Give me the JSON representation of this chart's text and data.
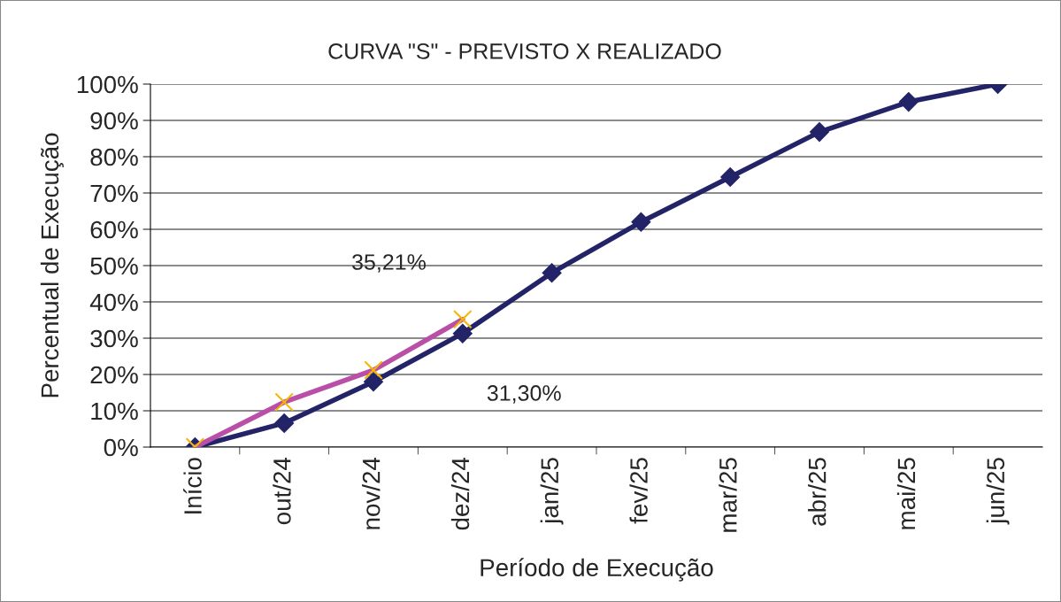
{
  "chart_data": {
    "type": "line",
    "title": "CURVA \"S\" - PREVISTO X REALIZADO",
    "xlabel": "Período de Execução",
    "ylabel": "Percentual de Execução",
    "categories": [
      "Início",
      "out/24",
      "nov/24",
      "dez/24",
      "jan/25",
      "fev/25",
      "mar/25",
      "abr/25",
      "mai/25",
      "jun/25"
    ],
    "series": [
      {
        "color": "#232368",
        "marker": "diamond",
        "values": [
          0,
          6.6,
          18.0,
          31.3,
          48.0,
          62.0,
          74.4,
          86.8,
          95.1,
          100
        ]
      },
      {
        "color": "#b94fa6",
        "marker": "cross",
        "values": [
          0,
          12.4,
          21.2,
          35.21,
          null,
          null,
          null,
          null,
          null,
          null
        ]
      }
    ],
    "annotations": [
      {
        "text": "35,21%",
        "x": "dez/24",
        "y": 35.21
      },
      {
        "text": "31,30%",
        "x": "dez/24",
        "y": 31.3
      }
    ],
    "ylim": [
      0,
      100
    ],
    "yticks": [
      {
        "value": 0,
        "label": "0%"
      },
      {
        "value": 10,
        "label": "10%"
      },
      {
        "value": 20,
        "label": "20%"
      },
      {
        "value": 30,
        "label": "30%"
      },
      {
        "value": 40,
        "label": "40%"
      },
      {
        "value": 50,
        "label": "50%"
      },
      {
        "value": 60,
        "label": "60%"
      },
      {
        "value": 70,
        "label": "70%"
      },
      {
        "value": 80,
        "label": "80%"
      },
      {
        "value": 90,
        "label": "90%"
      },
      {
        "value": 100,
        "label": "100%"
      }
    ],
    "grid": "y",
    "legend": false
  }
}
